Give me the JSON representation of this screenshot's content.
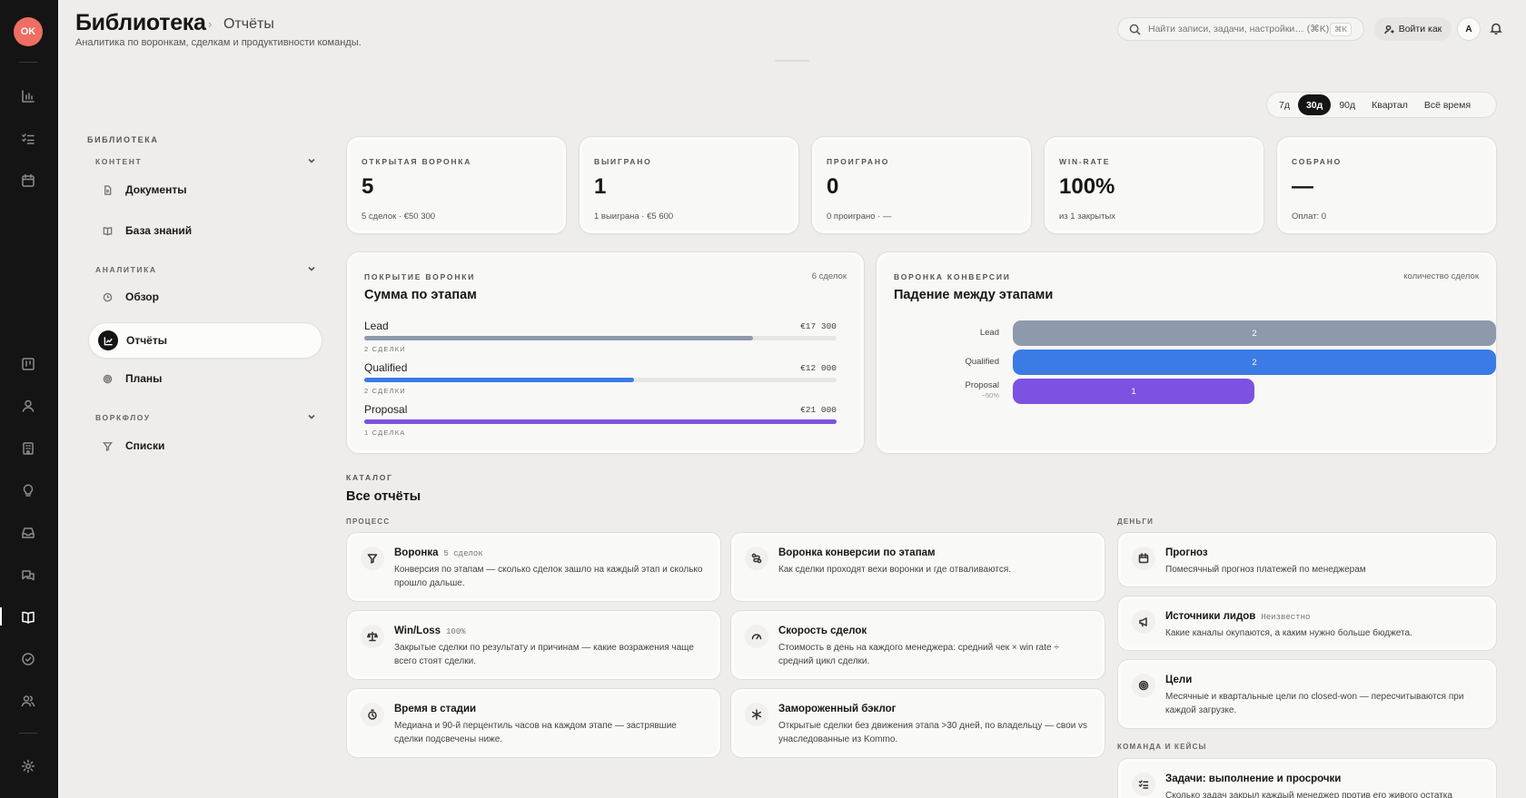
{
  "rail": {
    "avatar": "OK"
  },
  "header": {
    "title": "Библиотека",
    "crumb_sep": "›",
    "crumb": "Отчёты",
    "subtitle": "Аналитика по воронкам, сделкам и продуктивности команды.",
    "search_placeholder": "Найти записи, задачи, настройки… (⌘K)",
    "search_kbd": "⌘K",
    "login_as": "Войти как",
    "user_initial": "A"
  },
  "period": {
    "options": [
      "7д",
      "30д",
      "90д",
      "Квартал",
      "Всё время"
    ],
    "selected": "30д"
  },
  "library": {
    "heading": "БИБЛИОТЕКА",
    "groups": [
      {
        "label": "КОНТЕНТ",
        "items": [
          "Документы",
          "База знаний"
        ]
      },
      {
        "label": "АНАЛИТИКА",
        "items": [
          "Обзор",
          "Отчёты",
          "Планы"
        ]
      },
      {
        "label": "ВОРКФЛОУ",
        "items": [
          "Списки"
        ]
      }
    ],
    "active_item": "Отчёты"
  },
  "kpis": [
    {
      "label": "ОТКРЫТАЯ ВОРОНКА",
      "value": "5",
      "sub": "5 сделок · €50 300"
    },
    {
      "label": "ВЫИГРАНО",
      "value": "1",
      "sub": "1 выиграна · €5 600"
    },
    {
      "label": "ПРОИГРАНО",
      "value": "0",
      "sub": "0 проиграно · —"
    },
    {
      "label": "WIN-RATE",
      "value": "100%",
      "sub": "из 1 закрытых"
    },
    {
      "label": "СОБРАНО",
      "value": "—",
      "sub": "Оплат: 0"
    }
  ],
  "coverage": {
    "label": "ПОКРЫТИЕ ВОРОНКИ",
    "right": "6 сделок",
    "title": "Сумма по этапам",
    "stages": [
      {
        "name": "Lead",
        "value_label": "€17 300",
        "count": "2 СДЕЛКИ",
        "fraction": 0.823,
        "color": "#8e99ab"
      },
      {
        "name": "Qualified",
        "value_label": "€12 000",
        "count": "2 СДЕЛКИ",
        "fraction": 0.571,
        "color": "#3b7be6"
      },
      {
        "name": "Proposal",
        "value_label": "€21 000",
        "count": "1 СДЕЛКА",
        "fraction": 1.0,
        "color": "#7b52e2"
      }
    ]
  },
  "conversion": {
    "label": "ВОРОНКА КОНВЕРСИИ",
    "right": "количество сделок",
    "title": "Падение между этапами",
    "max": 2,
    "stages": [
      {
        "name": "Lead",
        "value": 2,
        "pct": "",
        "color": "#8e99ab"
      },
      {
        "name": "Qualified",
        "value": 2,
        "pct": "",
        "color": "#3b7be6"
      },
      {
        "name": "Proposal",
        "value": 1,
        "pct": "−50%",
        "color": "#7b52e2"
      }
    ]
  },
  "catalog": {
    "label": "КАТАЛОГ",
    "title": "Все отчёты",
    "process_label": "ПРОЦЕСС",
    "money_label": "ДЕНЬГИ",
    "team_label": "КОМАНДА И КЕЙСЫ",
    "process": [
      {
        "title": "Воронка",
        "badge": "5 сделок",
        "desc": "Конверсия по этапам — сколько сделок зашло на каждый этап и сколько прошло дальше.",
        "icon": "filter-icon"
      },
      {
        "title": "Воронка конверсии по этапам",
        "badge": "",
        "desc": "Как сделки проходят вехи воронки и где отваливаются.",
        "icon": "route-icon"
      },
      {
        "title": "Win/Loss",
        "badge": "100%",
        "desc": "Закрытые сделки по результату и причинам — какие возражения чаще всего стоят сделки.",
        "icon": "scale-icon"
      },
      {
        "title": "Скорость сделок",
        "badge": "",
        "desc": "Стоимость в день на каждого менеджера: средний чек × win rate ÷ средний цикл сделки.",
        "icon": "gauge-icon"
      },
      {
        "title": "Время в стадии",
        "badge": "",
        "desc": "Медиана и 90-й перцентиль часов на каждом этапе — застрявшие сделки подсвечены ниже.",
        "icon": "timer-icon"
      },
      {
        "title": "Замороженный бэклог",
        "badge": "",
        "desc": "Открытые сделки без движения этапа >30 дней, по владельцу — свои vs унаследованные из Kommo.",
        "icon": "snowflake-icon"
      }
    ],
    "money": [
      {
        "title": "Прогноз",
        "badge": "",
        "desc": "Помесячный прогноз платежей по менеджерам",
        "icon": "calendar-icon"
      },
      {
        "title": "Источники лидов",
        "badge": "Неизвестно",
        "desc": "Какие каналы окупаются, а каким нужно больше бюджета.",
        "icon": "megaphone-icon"
      },
      {
        "title": "Цели",
        "badge": "",
        "desc": "Месячные и квартальные цели по closed-won — пересчитываются при каждой загрузке.",
        "icon": "target-icon"
      }
    ],
    "team": [
      {
        "title": "Задачи: выполнение и просрочки",
        "badge": "",
        "desc": "Сколько задач закрыл каждый менеджер против его живого остатка",
        "icon": "task-list-icon"
      }
    ]
  }
}
